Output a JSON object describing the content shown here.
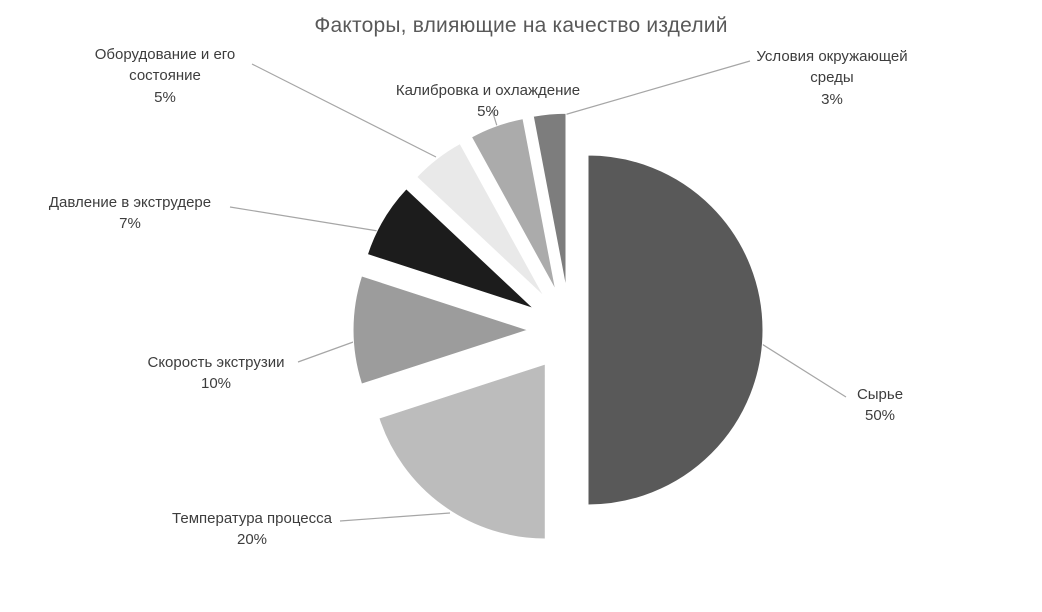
{
  "chart_data": {
    "type": "pie",
    "title": "Факторы, влияющие на качество изделий",
    "exploded": true,
    "direction": "clockwise",
    "start_angle_deg": 0,
    "legend_position": "none",
    "background": "#ffffff",
    "title_color": "#595959",
    "label_color": "#3d3d3d",
    "leader_line_color": "#a6a6a6",
    "slices": [
      {
        "label": "Сырье",
        "value": 50,
        "pct_label": "50%",
        "color": "#595959"
      },
      {
        "label": "Температура процесса",
        "value": 20,
        "pct_label": "20%",
        "color": "#bcbcbc"
      },
      {
        "label": "Скорость экструзии",
        "value": 10,
        "pct_label": "10%",
        "color": "#9c9c9c"
      },
      {
        "label": "Давление в экструдере",
        "value": 7,
        "pct_label": "7%",
        "color": "#1c1c1c"
      },
      {
        "label": "Оборудование и его состояние",
        "value": 5,
        "pct_label": "5%",
        "color": "#e9e9e9"
      },
      {
        "label": "Калибровка и охлаждение",
        "value": 5,
        "pct_label": "5%",
        "color": "#ababab"
      },
      {
        "label": "Условия окружающей среды",
        "value": 3,
        "pct_label": "3%",
        "color": "#7d7d7d"
      }
    ]
  }
}
